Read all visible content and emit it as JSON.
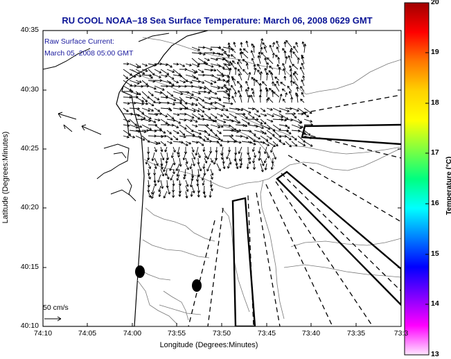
{
  "title": "RU COOL  NOAA–18  Sea Surface Temperature:  March 06, 2008 0629 GMT",
  "annotation": {
    "line1": "Raw Surface Current:",
    "line2": "March 05, 2008 05:00 GMT"
  },
  "scale": {
    "label": "50 cm/s"
  },
  "axes": {
    "xlabel": "Longitude (Degrees:Minutes)",
    "ylabel": "Latitude (Degrees:Minutes)",
    "xticks": [
      "74:10",
      "74:05",
      "74:00",
      "73:55",
      "73:50",
      "73:45",
      "73:40",
      "73:35",
      "73:3"
    ],
    "yticks": [
      "40:35",
      "40:30",
      "40:25",
      "40:20",
      "40:15",
      "40:10"
    ]
  },
  "colorbar": {
    "label": "Temperature (°C)",
    "ticks": [
      "20",
      "19",
      "18",
      "17",
      "16",
      "15",
      "14",
      "13"
    ],
    "colors": [
      "#a00000",
      "#ff0000",
      "#ff7800",
      "#ffd200",
      "#ffff00",
      "#80ff40",
      "#00ff80",
      "#00ffff",
      "#0080ff",
      "#0000ff",
      "#8000ff",
      "#ff00ff",
      "#ffe6ff"
    ]
  }
}
